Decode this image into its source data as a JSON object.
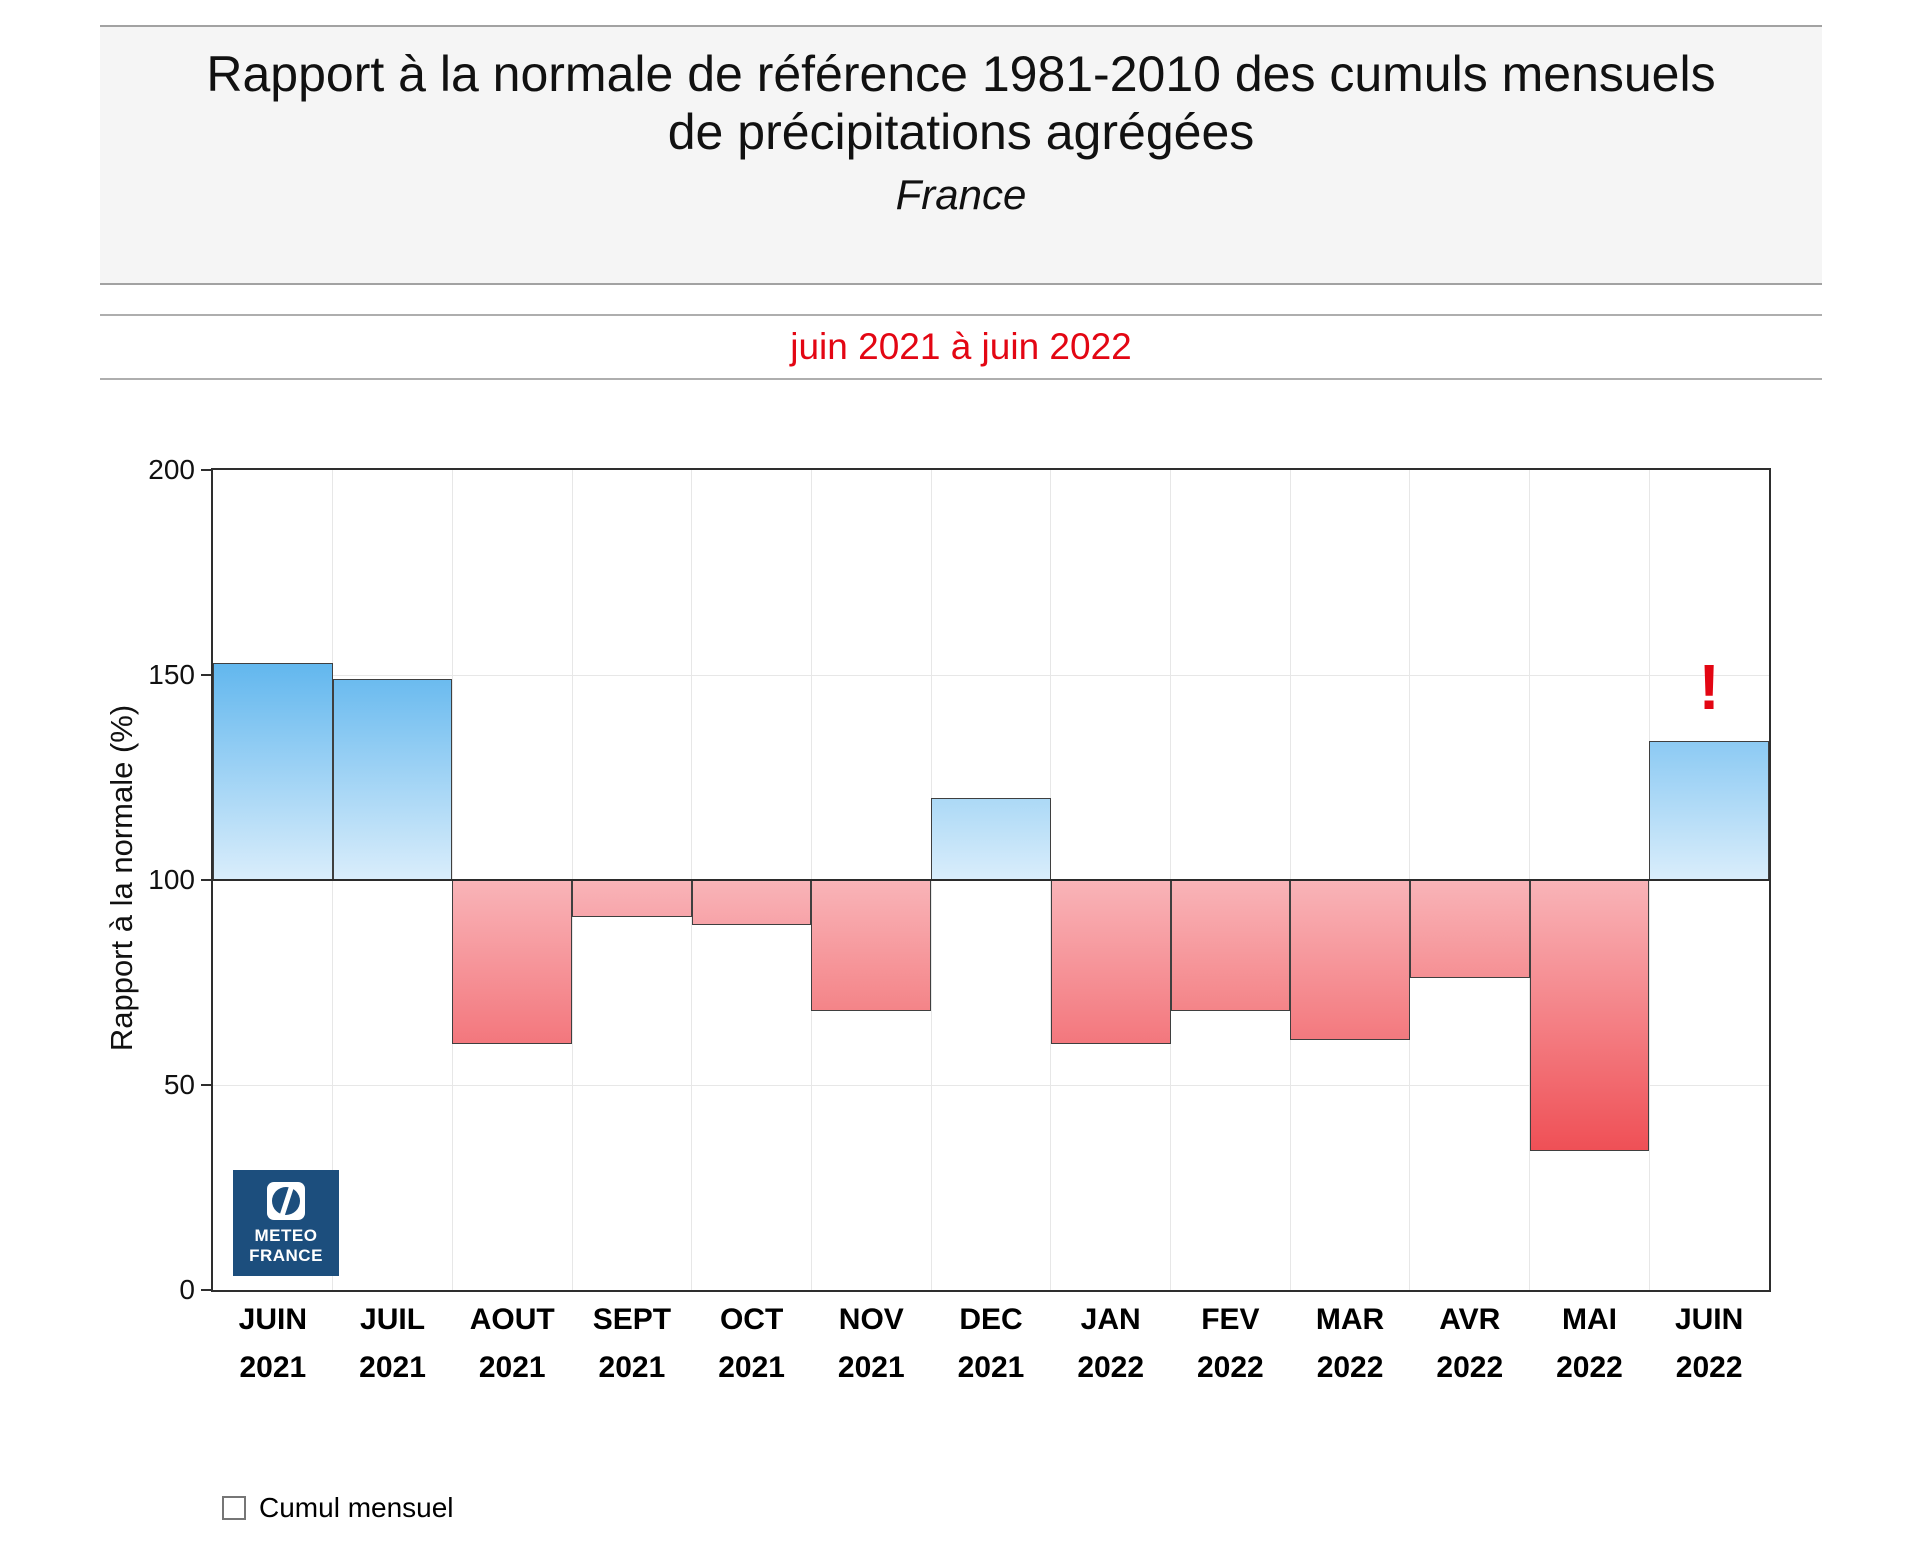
{
  "header": {
    "title_line1": "Rapport à la normale de référence 1981-2010 des cumuls mensuels",
    "title_line2": "de précipitations agrégées",
    "region": "France",
    "period": "juin 2021 à juin 2022"
  },
  "legend": {
    "label": "Cumul mensuel",
    "checkbox_icon": "empty-square"
  },
  "logo": {
    "line1": "METEO",
    "line2": "FRANCE",
    "icon": "meteo-france-split-circle-icon",
    "background_color": "#1c4e7d"
  },
  "colors": {
    "accent_red": "#e30613",
    "blue_bar_top": "#5db5ee",
    "blue_bar_base": "#d9edfb",
    "red_bar_base": "#f9b4b8",
    "red_bar_deep": "#ef5056",
    "bar_border": "#3f3f3f",
    "baseline_line": "#2b2b2b",
    "panel_background": "#f5f5f5"
  },
  "chart_data": {
    "type": "bar",
    "title": "Rapport à la normale de référence 1981-2010 des cumuls mensuels de précipitations agrégées",
    "subtitle_region": "France",
    "period": "juin 2021 à juin 2022",
    "ylabel": "Rapport à la normale (%)",
    "xlabel": "",
    "ylim": [
      0,
      200
    ],
    "yticks": [
      0,
      50,
      100,
      150,
      200
    ],
    "baseline": 100,
    "grid": true,
    "legend_position": "bottom-left",
    "categories": [
      {
        "month": "JUIN",
        "year": "2021"
      },
      {
        "month": "JUIL",
        "year": "2021"
      },
      {
        "month": "AOUT",
        "year": "2021"
      },
      {
        "month": "SEPT",
        "year": "2021"
      },
      {
        "month": "OCT",
        "year": "2021"
      },
      {
        "month": "NOV",
        "year": "2021"
      },
      {
        "month": "DEC",
        "year": "2021"
      },
      {
        "month": "JAN",
        "year": "2022"
      },
      {
        "month": "FEV",
        "year": "2022"
      },
      {
        "month": "MAR",
        "year": "2022"
      },
      {
        "month": "AVR",
        "year": "2022"
      },
      {
        "month": "MAI",
        "year": "2022"
      },
      {
        "month": "JUIN",
        "year": "2022"
      }
    ],
    "series": [
      {
        "name": "Cumul mensuel",
        "values": [
          153,
          149,
          60,
          91,
          89,
          68,
          120,
          60,
          68,
          61,
          76,
          34,
          134
        ]
      }
    ],
    "annotations": [
      {
        "text": "!",
        "category_index": 12,
        "color": "#e30613",
        "position": "above-bar"
      }
    ]
  }
}
